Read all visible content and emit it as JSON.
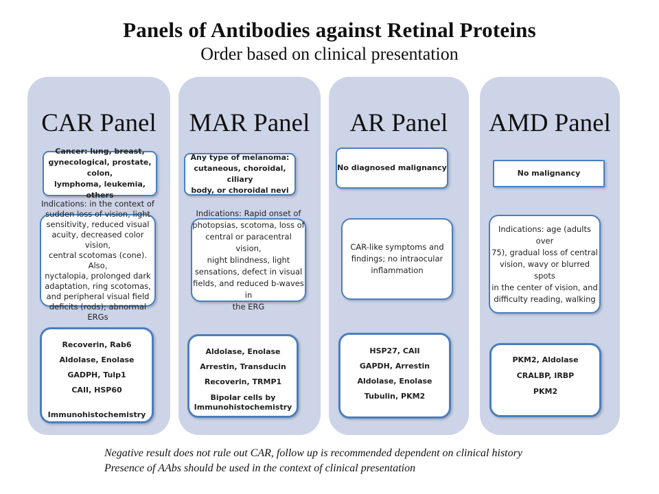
{
  "slide": {
    "title": "Panels of Antibodies against Retinal Proteins",
    "subtitle": "Order based on clinical presentation",
    "footer_line1": "Negative result does not rule out CAR, follow up is recommended  dependent on clinical history",
    "footer_line2": "Presence of AAbs should be used in the context of clinical presentation"
  },
  "colors": {
    "column_background": "#cdd4e7",
    "box_border": "#4a7ebd",
    "box_background": "#ffffff",
    "text": "#1f1f1f"
  },
  "columns": [
    {
      "title": "CAR Panel",
      "malignancy": "Cancer:  lung, breast,\ngynecological, prostate, colon,\nlymphoma, leukemia, others",
      "indications": "Indications: in the context of\nsudden loss of vision, light\nsensitivity, reduced visual\nacuity, decreased color vision,\ncentral scotomas (cone). Also,\nnyctalopia, prolonged dark\nadaptation,  ring scotomas,\nand peripheral visual field\ndeficits (rods); abnormal ERGs",
      "tests": [
        "Recoverin, Rab6",
        "Aldolase,  Enolase",
        "GADPH, Tulp1",
        "CAII,  HSP60",
        "Immunohistochemistry"
      ]
    },
    {
      "title": "MAR Panel",
      "malignancy": "Any type of melanoma:\ncutaneous,  choroidal, ciliary\nbody, or choroidal  nevi",
      "indications": "Indications: Rapid onset of\nphotopsias, scotoma, loss of\ncentral or paracentral vision,\nnight blindness, light\nsensations, defect in visual\nfields, and reduced b-waves in\nthe ERG",
      "tests": [
        "Aldolase,  Enolase",
        "Arrestin,  Transducin",
        "Recoverin, TRMP1",
        "Bipolar cells by\nImmunohistochemistry"
      ]
    },
    {
      "title": "AR Panel",
      "malignancy": "No diagnosed  malignancy",
      "indications": "CAR-like symptoms and\nfindings; no intraocular\ninflammation",
      "tests": [
        "HSP27,  CAII",
        "GAPDH, Arrestin",
        "Aldolase,  Enolase",
        "Tubulin,  PKM2"
      ]
    },
    {
      "title": "AMD Panel",
      "malignancy": "No malignancy",
      "indications": "Indications: age (adults over\n75), gradual loss of central\nvision, wavy or blurred spots\nin the center of vision, and\ndifficulty reading, walking",
      "tests": [
        "PKM2, Aldolase",
        "CRALBP, IRBP",
        "PKM2"
      ]
    }
  ]
}
